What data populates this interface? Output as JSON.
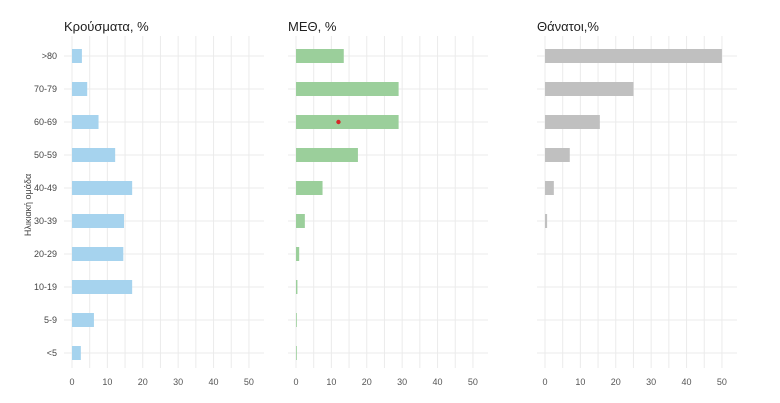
{
  "chart_data": {
    "type": "bar",
    "orientation": "horizontal",
    "ylabel": "Ηλικιακή ομάδα",
    "categories": [
      ">80",
      "70-79",
      "60-69",
      "50-59",
      "40-49",
      "30-39",
      "20-29",
      "10-19",
      "5-9",
      "<5"
    ],
    "grid": true,
    "panels": [
      {
        "title": "Κρούσματα, %",
        "color": "#a6d3ee",
        "xlim": [
          0,
          52
        ],
        "xticks": [
          0,
          10,
          20,
          30,
          40,
          50
        ],
        "values": [
          2.8,
          4.3,
          7.5,
          12.2,
          17.0,
          14.7,
          14.5,
          17.0,
          6.2,
          2.5
        ]
      },
      {
        "title": "ΜΕΘ, %",
        "color": "#9bcf9b",
        "xlim": [
          0,
          52
        ],
        "xticks": [
          0,
          10,
          20,
          30,
          40,
          50
        ],
        "values": [
          13.5,
          29.0,
          29.0,
          17.5,
          7.5,
          2.5,
          0.9,
          0.4,
          0.2,
          0.2
        ],
        "marker": {
          "category": "60-69",
          "value": 12,
          "color": "#d62728"
        }
      },
      {
        "title": "Θάνατοι,%",
        "color": "#c0c0c0",
        "xlim": [
          0,
          52
        ],
        "xticks": [
          0,
          10,
          20,
          30,
          40,
          50
        ],
        "values": [
          50.0,
          25.0,
          15.5,
          7.0,
          2.5,
          0.6,
          0.0,
          0.0,
          0.0,
          0.0
        ]
      }
    ]
  }
}
